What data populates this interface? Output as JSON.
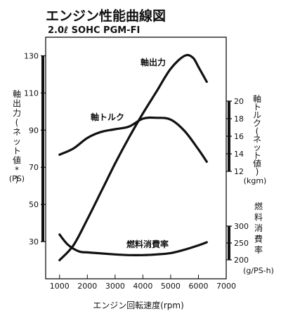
{
  "title": "エンジン性能曲線図",
  "subtitle": "2.0ℓ SOHC PGM-FI",
  "chart_data": {
    "type": "line",
    "x_axis": {
      "label": "エンジン回転速度(rpm)",
      "ticks": [
        1000,
        2000,
        3000,
        4000,
        5000,
        6000,
        7000
      ],
      "range": [
        500,
        7000
      ]
    },
    "axes": [
      {
        "id": "power",
        "side": "left",
        "label": "軸出力(ネット値*)",
        "unit": "(PS)",
        "range": [
          10,
          140
        ],
        "ticks": [
          30,
          50,
          70,
          90,
          110,
          130
        ]
      },
      {
        "id": "torque",
        "side": "right",
        "label": "軸トルク(ネット値)",
        "unit": "(kgm)",
        "range": [
          12,
          20
        ],
        "ticks": [
          12,
          14,
          16,
          18,
          20
        ]
      },
      {
        "id": "fuel",
        "side": "right",
        "label": "燃料消費率",
        "unit": "(g/PS-h)",
        "range": [
          200,
          300
        ],
        "ticks": [
          200,
          250,
          300
        ]
      }
    ],
    "series": [
      {
        "name": "軸出力",
        "axis": "power",
        "x": [
          1000,
          1500,
          2000,
          2500,
          3000,
          3500,
          4000,
          4500,
          5000,
          5500,
          5800,
          6000,
          6300
        ],
        "y": [
          20,
          28,
          42,
          57,
          72,
          86,
          99,
          111,
          123,
          130,
          129,
          124,
          116
        ]
      },
      {
        "name": "軸トルク",
        "axis": "torque",
        "x": [
          1000,
          1500,
          2000,
          2500,
          3000,
          3500,
          4000,
          4500,
          5000,
          5500,
          6000,
          6300
        ],
        "y": [
          13.9,
          14.6,
          15.8,
          16.5,
          16.8,
          17.1,
          18.0,
          18.1,
          17.9,
          16.6,
          14.5,
          13.1
        ]
      },
      {
        "name": "燃料消費率",
        "axis": "fuel",
        "x": [
          1000,
          1300,
          1700,
          2000,
          2500,
          3000,
          3500,
          4000,
          4500,
          5000,
          5500,
          6000,
          6300
        ],
        "y": [
          275,
          245,
          225,
          222,
          219,
          216,
          214,
          214,
          216,
          220,
          230,
          243,
          252
        ]
      }
    ]
  }
}
